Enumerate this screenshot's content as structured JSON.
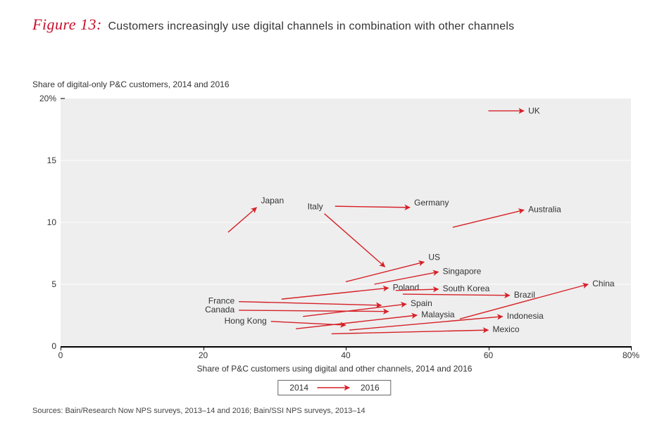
{
  "figure": {
    "number_label": "Figure 13:",
    "title_text": "Customers increasingly use digital channels in combination with other channels",
    "y_axis_title": "Share of digital-only P&C customers, 2014 and 2016",
    "x_axis_title": "Share of P&C customers using digital and other channels, 2014 and 2016",
    "sources": "Sources: Bain/Research Now NPS surveys, 2013–14 and 2016; Bain/SSI NPS surveys, 2013–14"
  },
  "chart": {
    "type": "arrow-scatter",
    "arrow_color": "#d62027",
    "arrow_stroke_width": 1.4,
    "arrowhead_size": 6,
    "plot_background": "#eeeeee",
    "axis_color": "#000000",
    "gridline_color": "#ffffff",
    "xlim": [
      0,
      80
    ],
    "ylim": [
      0,
      20
    ],
    "x_ticks": [
      {
        "v": 0,
        "label": "0"
      },
      {
        "v": 20,
        "label": "20"
      },
      {
        "v": 40,
        "label": "40"
      },
      {
        "v": 60,
        "label": "60"
      },
      {
        "v": 80,
        "label": "80%"
      }
    ],
    "y_ticks": [
      {
        "v": 0,
        "label": "0"
      },
      {
        "v": 5,
        "label": "5"
      },
      {
        "v": 10,
        "label": "10"
      },
      {
        "v": 15,
        "label": "15"
      },
      {
        "v": 20,
        "label": "20%"
      }
    ],
    "gridlines_y": [
      5,
      10,
      15
    ],
    "label_fontsize": 12,
    "title_fontsize": 16,
    "font_family": "Helvetica Neue",
    "series": [
      {
        "name": "UK",
        "start": [
          60.0,
          19.0
        ],
        "end": [
          65.0,
          19.0
        ],
        "label_anchor": "start-of-arrow-tip",
        "dx": 6,
        "dy": 4
      },
      {
        "name": "Japan",
        "start": [
          23.5,
          9.2
        ],
        "end": [
          27.5,
          11.2
        ],
        "label_anchor": "near-end-upper",
        "dx": 6,
        "dy": -6
      },
      {
        "name": "Italy",
        "start": [
          37.0,
          10.7
        ],
        "end": [
          45.5,
          6.4
        ],
        "label_anchor": "start-upper",
        "dx": -2,
        "dy": -6,
        "label_at": "start"
      },
      {
        "name": "Germany",
        "start": [
          38.5,
          11.3
        ],
        "end": [
          49.0,
          11.2
        ],
        "label_anchor": "end-upper",
        "dx": 6,
        "dy": -3
      },
      {
        "name": "Australia",
        "start": [
          55.0,
          9.6
        ],
        "end": [
          65.0,
          11.0
        ],
        "label_anchor": "end",
        "dx": 6,
        "dy": 3
      },
      {
        "name": "US",
        "start": [
          40.0,
          5.2
        ],
        "end": [
          51.0,
          6.8
        ],
        "label_anchor": "end-upper",
        "dx": 6,
        "dy": -3
      },
      {
        "name": "Singapore",
        "start": [
          44.0,
          5.0
        ],
        "end": [
          53.0,
          6.0
        ],
        "label_anchor": "end",
        "dx": 6,
        "dy": 3
      },
      {
        "name": "Poland",
        "start": [
          31.0,
          3.8
        ],
        "end": [
          46.0,
          4.7
        ],
        "label_anchor": "end",
        "dx": 6,
        "dy": 3
      },
      {
        "name": "South Korea",
        "start": [
          47.0,
          4.5
        ],
        "end": [
          53.0,
          4.6
        ],
        "label_anchor": "end",
        "dx": 6,
        "dy": 3
      },
      {
        "name": "Brazil",
        "start": [
          48.0,
          4.2
        ],
        "end": [
          63.0,
          4.1
        ],
        "label_anchor": "end",
        "dx": 6,
        "dy": 3
      },
      {
        "name": "China",
        "start": [
          56.0,
          2.2
        ],
        "end": [
          74.0,
          5.0
        ],
        "label_anchor": "end",
        "dx": 6,
        "dy": 3
      },
      {
        "name": "France",
        "start": [
          25.0,
          3.6
        ],
        "end": [
          45.0,
          3.3
        ],
        "label_anchor": "start-left",
        "dx": -6,
        "dy": 3,
        "label_at": "start"
      },
      {
        "name": "Canada",
        "start": [
          25.0,
          2.9
        ],
        "end": [
          46.0,
          2.8
        ],
        "label_anchor": "start-left",
        "dx": -6,
        "dy": 3,
        "label_at": "start"
      },
      {
        "name": "Spain",
        "start": [
          34.0,
          2.4
        ],
        "end": [
          48.5,
          3.4
        ],
        "label_anchor": "end",
        "dx": 6,
        "dy": 3
      },
      {
        "name": "Hong Kong",
        "start": [
          29.5,
          2.0
        ],
        "end": [
          40.0,
          1.7
        ],
        "label_anchor": "start-left",
        "dx": -6,
        "dy": 3,
        "label_at": "start"
      },
      {
        "name": "Malaysia",
        "start": [
          33.0,
          1.4
        ],
        "end": [
          50.0,
          2.5
        ],
        "label_anchor": "end",
        "dx": 6,
        "dy": 3
      },
      {
        "name": "Indonesia",
        "start": [
          40.5,
          1.3
        ],
        "end": [
          62.0,
          2.4
        ],
        "label_anchor": "end",
        "dx": 6,
        "dy": 3
      },
      {
        "name": "Mexico",
        "start": [
          38.0,
          1.0
        ],
        "end": [
          60.0,
          1.3
        ],
        "label_anchor": "end",
        "dx": 6,
        "dy": 3
      }
    ]
  },
  "legend": {
    "left_label": "2014",
    "right_label": "2016",
    "arrow_color": "#d62027"
  }
}
